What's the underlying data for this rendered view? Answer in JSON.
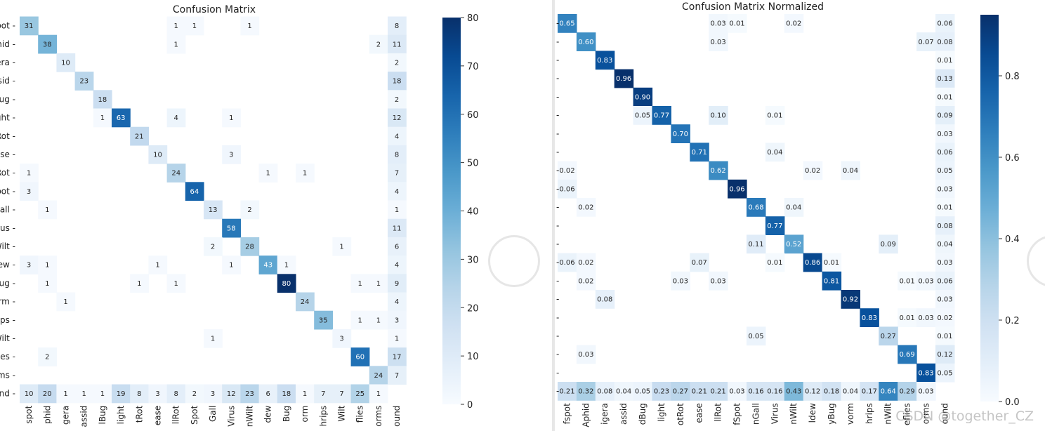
{
  "left": {
    "title": "Confusion Matrix",
    "cbar_ticks": [
      "0",
      "10",
      "20",
      "30",
      "40",
      "50",
      "60",
      "70",
      "80"
    ]
  },
  "right": {
    "title": "Confusion Matrix Normalized",
    "cbar_ticks": [
      "0.0",
      "0.2",
      "0.4",
      "0.6",
      "0.8"
    ]
  },
  "left_yticklabels": [
    "pot -",
    "hid -",
    "era -",
    "ssid -",
    "Bug -",
    "ght -",
    "Rot -",
    "ase -",
    "Rot -",
    "pot -",
    "Gall -",
    "rus -",
    "Wilt -",
    "lew -",
    "Bug -",
    "orm -",
    "rips -",
    "Wilt -",
    "lies -",
    "rms -",
    "und -"
  ],
  "left_xticklabels": [
    "spot",
    "phid",
    "gera",
    "assid",
    "lBug",
    "light",
    "tRot",
    "ease",
    "llRot",
    "Spot",
    "Gall",
    "Virus",
    "nWilt",
    "dew",
    "Bug",
    "orm",
    "hrips",
    "Wilt",
    "flies",
    "orms",
    "ound"
  ],
  "right_xticklabels": [
    "fspot",
    "Aphid",
    "igera",
    "assid",
    "dBug",
    "light",
    "otRot",
    "ease",
    "llRot",
    "fSpot",
    "nGall",
    "Virus",
    "nWilt",
    "ldew",
    "yBug",
    "vorm",
    "hrips",
    "nWilt",
    "eflies",
    "orms",
    "ound"
  ],
  "watermark": "CSDN @together_CZ",
  "chart_data": [
    {
      "type": "heatmap",
      "title": "Confusion Matrix",
      "colorbar_range": [
        0,
        80
      ],
      "colormap": "Blues",
      "cells": [
        [
          0,
          0,
          31
        ],
        [
          0,
          8,
          1
        ],
        [
          0,
          9,
          1
        ],
        [
          0,
          12,
          1
        ],
        [
          0,
          20,
          8
        ],
        [
          1,
          1,
          38
        ],
        [
          1,
          8,
          1
        ],
        [
          1,
          19,
          2
        ],
        [
          1,
          20,
          11
        ],
        [
          2,
          2,
          10
        ],
        [
          2,
          20,
          2
        ],
        [
          3,
          3,
          23
        ],
        [
          3,
          20,
          18
        ],
        [
          4,
          4,
          18
        ],
        [
          4,
          20,
          2
        ],
        [
          5,
          4,
          1
        ],
        [
          5,
          5,
          63
        ],
        [
          5,
          8,
          4
        ],
        [
          5,
          11,
          1
        ],
        [
          5,
          20,
          12
        ],
        [
          6,
          6,
          21
        ],
        [
          6,
          20,
          4
        ],
        [
          7,
          7,
          10
        ],
        [
          7,
          11,
          3
        ],
        [
          7,
          20,
          8
        ],
        [
          8,
          0,
          1
        ],
        [
          8,
          8,
          24
        ],
        [
          8,
          13,
          1
        ],
        [
          8,
          15,
          1
        ],
        [
          8,
          20,
          7
        ],
        [
          9,
          0,
          3
        ],
        [
          9,
          9,
          64
        ],
        [
          9,
          20,
          4
        ],
        [
          10,
          1,
          1
        ],
        [
          10,
          10,
          13
        ],
        [
          10,
          12,
          2
        ],
        [
          10,
          20,
          1
        ],
        [
          11,
          11,
          58
        ],
        [
          11,
          20,
          11
        ],
        [
          12,
          10,
          2
        ],
        [
          12,
          12,
          28
        ],
        [
          12,
          17,
          1
        ],
        [
          12,
          20,
          6
        ],
        [
          13,
          0,
          3
        ],
        [
          13,
          1,
          1
        ],
        [
          13,
          7,
          1
        ],
        [
          13,
          11,
          1
        ],
        [
          13,
          13,
          43
        ],
        [
          13,
          14,
          1
        ],
        [
          13,
          20,
          4
        ],
        [
          14,
          1,
          1
        ],
        [
          14,
          6,
          1
        ],
        [
          14,
          8,
          1
        ],
        [
          14,
          14,
          80
        ],
        [
          14,
          18,
          1
        ],
        [
          14,
          19,
          1
        ],
        [
          14,
          20,
          9
        ],
        [
          15,
          2,
          1
        ],
        [
          15,
          15,
          24
        ],
        [
          15,
          20,
          4
        ],
        [
          16,
          16,
          35
        ],
        [
          16,
          18,
          1
        ],
        [
          16,
          19,
          1
        ],
        [
          16,
          20,
          3
        ],
        [
          17,
          10,
          1
        ],
        [
          17,
          17,
          3
        ],
        [
          17,
          20,
          1
        ],
        [
          18,
          1,
          2
        ],
        [
          18,
          18,
          60
        ],
        [
          18,
          20,
          17
        ],
        [
          19,
          19,
          24
        ],
        [
          19,
          20,
          7
        ],
        [
          20,
          0,
          10
        ],
        [
          20,
          1,
          20
        ],
        [
          20,
          2,
          1
        ],
        [
          20,
          3,
          1
        ],
        [
          20,
          4,
          1
        ],
        [
          20,
          5,
          19
        ],
        [
          20,
          6,
          8
        ],
        [
          20,
          7,
          3
        ],
        [
          20,
          8,
          8
        ],
        [
          20,
          9,
          2
        ],
        [
          20,
          10,
          3
        ],
        [
          20,
          11,
          12
        ],
        [
          20,
          12,
          23
        ],
        [
          20,
          13,
          6
        ],
        [
          20,
          14,
          18
        ],
        [
          20,
          15,
          1
        ],
        [
          20,
          16,
          7
        ],
        [
          20,
          17,
          7
        ],
        [
          20,
          18,
          25
        ],
        [
          20,
          19,
          1
        ]
      ]
    },
    {
      "type": "heatmap",
      "title": "Confusion Matrix Normalized",
      "colorbar_range": [
        0,
        0.95
      ],
      "colormap": "Blues",
      "cells": [
        [
          0,
          0,
          0.65
        ],
        [
          0,
          8,
          0.03
        ],
        [
          0,
          9,
          0.01
        ],
        [
          0,
          12,
          0.02
        ],
        [
          0,
          20,
          0.06
        ],
        [
          1,
          1,
          0.6
        ],
        [
          1,
          8,
          0.03
        ],
        [
          1,
          19,
          0.07
        ],
        [
          1,
          20,
          0.08
        ],
        [
          2,
          2,
          0.83
        ],
        [
          2,
          20,
          0.01
        ],
        [
          3,
          3,
          0.96
        ],
        [
          3,
          20,
          0.13
        ],
        [
          4,
          4,
          0.9
        ],
        [
          4,
          20,
          0.01
        ],
        [
          5,
          4,
          0.05
        ],
        [
          5,
          5,
          0.77
        ],
        [
          5,
          8,
          0.1
        ],
        [
          5,
          11,
          0.01
        ],
        [
          5,
          20,
          0.09
        ],
        [
          6,
          6,
          0.7
        ],
        [
          6,
          20,
          0.03
        ],
        [
          7,
          7,
          0.71
        ],
        [
          7,
          11,
          0.04
        ],
        [
          7,
          20,
          0.06
        ],
        [
          8,
          0,
          0.02
        ],
        [
          8,
          8,
          0.62
        ],
        [
          8,
          13,
          0.02
        ],
        [
          8,
          15,
          0.04
        ],
        [
          8,
          20,
          0.05
        ],
        [
          9,
          0,
          0.06
        ],
        [
          9,
          9,
          0.96
        ],
        [
          9,
          20,
          0.03
        ],
        [
          10,
          1,
          0.02
        ],
        [
          10,
          10,
          0.68
        ],
        [
          10,
          12,
          0.04
        ],
        [
          10,
          20,
          0.01
        ],
        [
          11,
          11,
          0.77
        ],
        [
          11,
          20,
          0.08
        ],
        [
          12,
          10,
          0.11
        ],
        [
          12,
          12,
          0.52
        ],
        [
          12,
          17,
          0.09
        ],
        [
          12,
          20,
          0.04
        ],
        [
          13,
          0,
          0.06
        ],
        [
          13,
          1,
          0.02
        ],
        [
          13,
          7,
          0.07
        ],
        [
          13,
          11,
          0.01
        ],
        [
          13,
          13,
          0.86
        ],
        [
          13,
          14,
          0.01
        ],
        [
          13,
          20,
          0.03
        ],
        [
          14,
          1,
          0.02
        ],
        [
          14,
          6,
          0.03
        ],
        [
          14,
          8,
          0.03
        ],
        [
          14,
          14,
          0.81
        ],
        [
          14,
          18,
          0.01
        ],
        [
          14,
          19,
          0.03
        ],
        [
          14,
          20,
          0.06
        ],
        [
          15,
          2,
          0.08
        ],
        [
          15,
          15,
          0.92
        ],
        [
          15,
          20,
          0.03
        ],
        [
          16,
          16,
          0.83
        ],
        [
          16,
          18,
          0.01
        ],
        [
          16,
          19,
          0.03
        ],
        [
          16,
          20,
          0.02
        ],
        [
          17,
          10,
          0.05
        ],
        [
          17,
          17,
          0.27
        ],
        [
          17,
          20,
          0.01
        ],
        [
          18,
          1,
          0.03
        ],
        [
          18,
          18,
          0.69
        ],
        [
          18,
          20,
          0.12
        ],
        [
          19,
          19,
          0.83
        ],
        [
          19,
          20,
          0.05
        ],
        [
          20,
          0,
          0.21
        ],
        [
          20,
          1,
          0.32
        ],
        [
          20,
          2,
          0.08
        ],
        [
          20,
          3,
          0.04
        ],
        [
          20,
          4,
          0.05
        ],
        [
          20,
          5,
          0.23
        ],
        [
          20,
          6,
          0.27
        ],
        [
          20,
          7,
          0.21
        ],
        [
          20,
          8,
          0.21
        ],
        [
          20,
          9,
          0.03
        ],
        [
          20,
          10,
          0.16
        ],
        [
          20,
          11,
          0.16
        ],
        [
          20,
          12,
          0.43
        ],
        [
          20,
          13,
          0.12
        ],
        [
          20,
          14,
          0.18
        ],
        [
          20,
          15,
          0.04
        ],
        [
          20,
          16,
          0.17
        ],
        [
          20,
          17,
          0.64
        ],
        [
          20,
          18,
          0.29
        ],
        [
          20,
          19,
          0.03
        ]
      ]
    }
  ]
}
